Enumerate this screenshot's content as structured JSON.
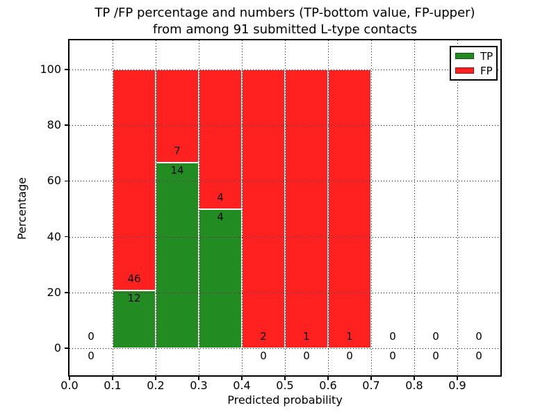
{
  "chart_data": {
    "type": "bar",
    "stacked": true,
    "normalized_to_percent": true,
    "title_line1": "TP /FP percentage and numbers (TP-bottom value, FP-upper)",
    "title_line2": "from among 91 submitted L-type contacts",
    "xlabel": "Predicted probability",
    "ylabel": "Percentage",
    "xlim": [
      0.0,
      1.0
    ],
    "ylim": [
      -10,
      110
    ],
    "xtick_labels": [
      "0.0",
      "0.1",
      "0.2",
      "0.3",
      "0.4",
      "0.5",
      "0.6",
      "0.7",
      "0.8",
      "0.9"
    ],
    "yticks": [
      0,
      20,
      40,
      60,
      80,
      100
    ],
    "grid": "dotted",
    "bin_width": 0.1,
    "total_contacts": 91,
    "legend": {
      "position": "upper right",
      "entries": [
        {
          "label": "TP",
          "color": "#228b22"
        },
        {
          "label": "FP",
          "color": "#ff2020"
        }
      ]
    },
    "bins": [
      {
        "x_start": 0.0,
        "x_end": 0.1,
        "tp": 0,
        "fp": 0
      },
      {
        "x_start": 0.1,
        "x_end": 0.2,
        "tp": 12,
        "fp": 46
      },
      {
        "x_start": 0.2,
        "x_end": 0.3,
        "tp": 14,
        "fp": 7
      },
      {
        "x_start": 0.3,
        "x_end": 0.4,
        "tp": 4,
        "fp": 4
      },
      {
        "x_start": 0.4,
        "x_end": 0.5,
        "tp": 0,
        "fp": 2
      },
      {
        "x_start": 0.5,
        "x_end": 0.6,
        "tp": 0,
        "fp": 1
      },
      {
        "x_start": 0.6,
        "x_end": 0.7,
        "tp": 0,
        "fp": 1
      },
      {
        "x_start": 0.7,
        "x_end": 0.8,
        "tp": 0,
        "fp": 0
      },
      {
        "x_start": 0.8,
        "x_end": 0.9,
        "tp": 0,
        "fp": 0
      },
      {
        "x_start": 0.9,
        "x_end": 1.0,
        "tp": 0,
        "fp": 0
      }
    ],
    "colors": {
      "tp": "#228b22",
      "fp": "#ff2020",
      "grid": "#000000",
      "text": "#000000"
    }
  }
}
